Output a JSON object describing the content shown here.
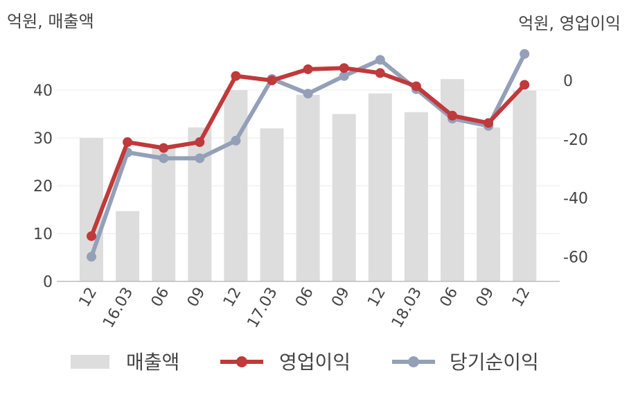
{
  "chart_data": {
    "type": "bar+line",
    "left_unit_label": "억원, 매출액",
    "right_unit_label": "억원, 영업이익",
    "categories": [
      "12",
      "16.03",
      "06",
      "09",
      "12",
      "17.03",
      "06",
      "09",
      "12",
      "18.03",
      "06",
      "09",
      "12"
    ],
    "left_axis": {
      "ticks": [
        0,
        10,
        20,
        30,
        40
      ],
      "ylim": [
        0,
        48
      ]
    },
    "right_axis": {
      "ticks": [
        0,
        -20,
        -40,
        -60
      ],
      "ylim": [
        -69,
        14
      ]
    },
    "series": [
      {
        "name": "매출액",
        "type": "bar",
        "axis": "left",
        "color": "#dddddd",
        "values": [
          30,
          14.7,
          28.5,
          32.2,
          40,
          32,
          39,
          35,
          39.3,
          35.4,
          42.3,
          32.2,
          39.9
        ]
      },
      {
        "name": "영업이익",
        "type": "line",
        "axis": "right",
        "color": "#c0393b",
        "values": [
          -53,
          -21,
          -23,
          -21,
          1.5,
          0,
          3.8,
          4.2,
          2.5,
          -2,
          -12,
          -14.5,
          -1.5
        ]
      },
      {
        "name": "당기순이익",
        "type": "line",
        "axis": "right",
        "color": "#94a0b8",
        "values": [
          -60,
          -24.5,
          -26.5,
          -26.5,
          -20.5,
          0.5,
          -4.5,
          1.5,
          7,
          -3,
          -13,
          -15.5,
          9
        ]
      }
    ],
    "grid": true,
    "legend": "bottom"
  }
}
